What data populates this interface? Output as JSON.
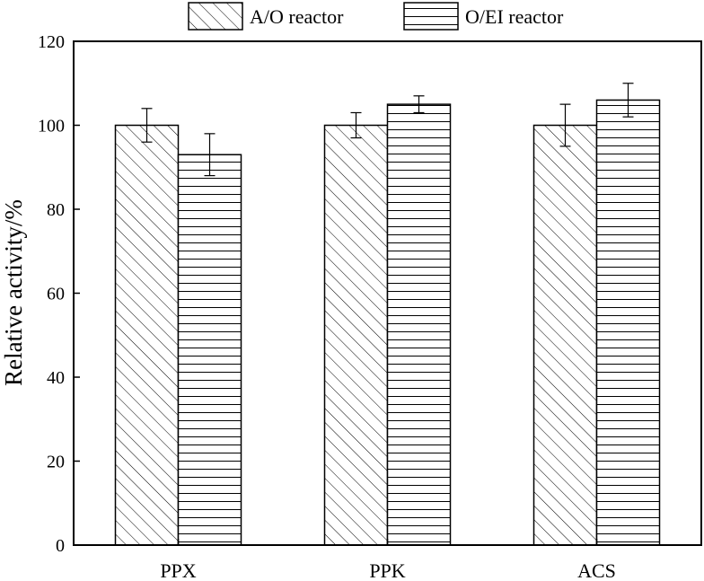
{
  "chart_data": {
    "type": "bar",
    "title": "",
    "xlabel": "",
    "ylabel": "Relative activity/%",
    "ylim": [
      0,
      120
    ],
    "yticks": [
      0,
      20,
      40,
      60,
      80,
      100,
      120
    ],
    "categories": [
      "PPX",
      "PPK",
      "ACS"
    ],
    "series": [
      {
        "name": "A/O reactor",
        "pattern": "diagonal-hatch",
        "values": [
          100,
          100,
          100
        ],
        "error": [
          4,
          3,
          5
        ]
      },
      {
        "name": "O/EI reactor",
        "pattern": "horizontal-hatch",
        "values": [
          93,
          105,
          106
        ],
        "error": [
          5,
          2,
          4
        ]
      }
    ],
    "legend_position": "top-center",
    "grid": false
  },
  "colors": {
    "bar_fill": "#ffffff",
    "stroke": "#000000"
  }
}
